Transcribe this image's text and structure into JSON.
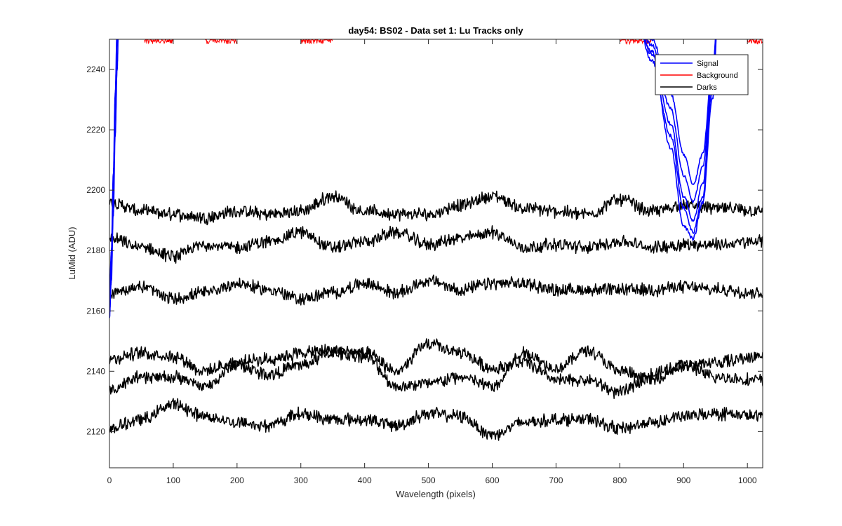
{
  "chart_data": {
    "type": "line",
    "title": "day54: BS02 - Data set 1: Lu Tracks only",
    "xlabel": "Wavelength (pixels)",
    "ylabel": "LuMid (ADU)",
    "xlim": [
      0,
      1024
    ],
    "ylim": [
      2108,
      2250
    ],
    "xticks": [
      0,
      100,
      200,
      300,
      400,
      500,
      600,
      700,
      800,
      900,
      1000
    ],
    "yticks": [
      2120,
      2140,
      2160,
      2180,
      2200,
      2220,
      2240
    ],
    "grid": false,
    "legend": {
      "position": "top-right",
      "entries": [
        {
          "label": "Signal",
          "color": "#0000ff"
        },
        {
          "label": "Background",
          "color": "#ff0000"
        },
        {
          "label": "Darks",
          "color": "#000000"
        }
      ]
    },
    "series": [
      {
        "group": "Darks",
        "color": "#000000",
        "x": [
          0,
          50,
          100,
          150,
          200,
          250,
          300,
          350,
          400,
          450,
          500,
          550,
          600,
          650,
          700,
          750,
          800,
          850,
          900,
          950,
          1024
        ],
        "y": [
          2196,
          2193,
          2192,
          2191,
          2193,
          2192,
          2193,
          2198,
          2193,
          2192,
          2192,
          2195,
          2198,
          2194,
          2193,
          2192,
          2197,
          2193,
          2195,
          2194,
          2193
        ]
      },
      {
        "group": "Darks",
        "color": "#000000",
        "x": [
          0,
          50,
          100,
          150,
          200,
          250,
          300,
          350,
          400,
          450,
          500,
          550,
          600,
          650,
          700,
          750,
          800,
          850,
          900,
          950,
          1024
        ],
        "y": [
          2184,
          2181,
          2178,
          2182,
          2181,
          2183,
          2186,
          2181,
          2183,
          2186,
          2182,
          2184,
          2186,
          2181,
          2182,
          2181,
          2183,
          2181,
          2182,
          2182,
          2183
        ]
      },
      {
        "group": "Darks",
        "color": "#000000",
        "x": [
          0,
          50,
          100,
          150,
          200,
          250,
          300,
          350,
          400,
          450,
          500,
          550,
          600,
          650,
          700,
          750,
          800,
          850,
          900,
          950,
          1024
        ],
        "y": [
          2166,
          2168,
          2164,
          2166,
          2169,
          2167,
          2164,
          2166,
          2169,
          2166,
          2170,
          2167,
          2169,
          2169,
          2167,
          2167,
          2167,
          2167,
          2168,
          2167,
          2166
        ]
      },
      {
        "group": "Darks",
        "color": "#000000",
        "x": [
          0,
          50,
          100,
          150,
          200,
          250,
          300,
          350,
          400,
          450,
          500,
          550,
          600,
          650,
          700,
          750,
          800,
          850,
          900,
          950,
          1024
        ],
        "y": [
          2144,
          2146,
          2145,
          2140,
          2143,
          2144,
          2146,
          2147,
          2146,
          2140,
          2149,
          2146,
          2141,
          2143,
          2137,
          2137,
          2133,
          2139,
          2142,
          2143,
          2145
        ]
      },
      {
        "group": "Darks",
        "color": "#000000",
        "x": [
          0,
          50,
          100,
          150,
          200,
          250,
          300,
          350,
          400,
          450,
          500,
          550,
          600,
          650,
          700,
          750,
          800,
          850,
          900,
          950,
          1024
        ],
        "y": [
          2134,
          2138,
          2138,
          2135,
          2142,
          2139,
          2142,
          2146,
          2145,
          2135,
          2136,
          2138,
          2135,
          2146,
          2141,
          2147,
          2140,
          2137,
          2142,
          2138,
          2137
        ]
      },
      {
        "group": "Darks",
        "color": "#000000",
        "x": [
          0,
          50,
          100,
          150,
          200,
          250,
          300,
          350,
          400,
          450,
          500,
          550,
          600,
          650,
          700,
          750,
          800,
          850,
          900,
          950,
          1024
        ],
        "y": [
          2121,
          2124,
          2129,
          2125,
          2123,
          2122,
          2126,
          2124,
          2124,
          2122,
          2126,
          2125,
          2119,
          2123,
          2124,
          2124,
          2121,
          2123,
          2125,
          2126,
          2125
        ]
      },
      {
        "group": "Signal",
        "color": "#0000ff",
        "x": [
          0,
          3,
          6,
          9,
          12,
          15
        ],
        "y": [
          2158,
          2170,
          2192,
          2218,
          2240,
          2262
        ]
      },
      {
        "group": "Signal",
        "color": "#0000ff",
        "x": [
          0,
          3,
          6,
          9,
          12,
          15
        ],
        "y": [
          2160,
          2175,
          2200,
          2226,
          2248,
          2262
        ]
      },
      {
        "group": "Signal",
        "color": "#0000ff",
        "x": [
          0,
          3,
          6,
          9,
          12,
          15
        ],
        "y": [
          2165,
          2180,
          2205,
          2232,
          2254,
          2262
        ]
      },
      {
        "group": "Signal",
        "color": "#0000ff",
        "x": [
          820,
          850,
          880,
          900,
          915,
          930,
          945,
          955
        ],
        "y": [
          2262,
          2250,
          2232,
          2212,
          2202,
          2212,
          2240,
          2262
        ]
      },
      {
        "group": "Signal",
        "color": "#0000ff",
        "x": [
          820,
          850,
          880,
          900,
          915,
          930,
          945,
          955
        ],
        "y": [
          2262,
          2248,
          2227,
          2205,
          2196,
          2208,
          2238,
          2262
        ]
      },
      {
        "group": "Signal",
        "color": "#0000ff",
        "x": [
          820,
          850,
          880,
          900,
          915,
          930,
          945,
          955
        ],
        "y": [
          2262,
          2245,
          2222,
          2198,
          2190,
          2202,
          2236,
          2262
        ]
      },
      {
        "group": "Signal",
        "color": "#0000ff",
        "x": [
          820,
          850,
          880,
          900,
          915,
          930,
          945,
          955
        ],
        "y": [
          2262,
          2243,
          2218,
          2194,
          2186,
          2198,
          2233,
          2262
        ]
      },
      {
        "group": "Signal",
        "color": "#0000ff",
        "x": [
          820,
          850,
          880,
          900,
          915,
          930,
          945,
          955
        ],
        "y": [
          2262,
          2246,
          2214,
          2188,
          2184,
          2196,
          2230,
          2262
        ]
      },
      {
        "group": "Background",
        "color": "#ff0000",
        "x": [
          55,
          100,
          150,
          200,
          300,
          350,
          800,
          850,
          1000,
          1024
        ],
        "y": [
          2249,
          2249,
          2249,
          2249,
          2249,
          2249,
          2249,
          2249,
          2249,
          2249
        ]
      }
    ]
  }
}
